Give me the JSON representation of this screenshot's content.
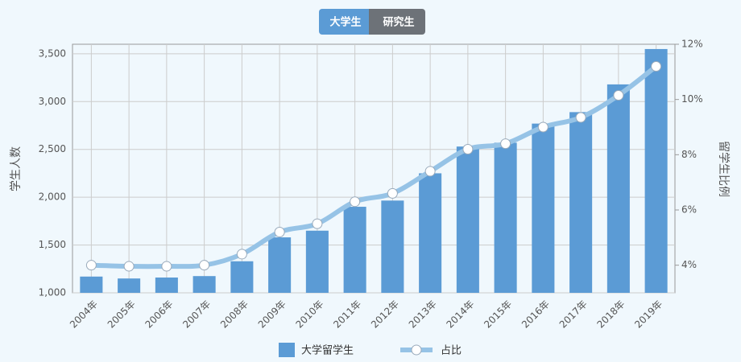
{
  "tabs": [
    "大学生",
    "研究生"
  ],
  "chart_data": {
    "type": "bar",
    "ylabel": "学生人数",
    "y2label": "留学生比例",
    "categories": [
      "2004年",
      "2005年",
      "2006年",
      "2007年",
      "2008年",
      "2009年",
      "2010年",
      "2011年",
      "2012年",
      "2013年",
      "2014年",
      "2015年",
      "2016年",
      "2017年",
      "2018年",
      "2019年"
    ],
    "series": [
      {
        "name": "大学留学生",
        "type": "bar",
        "color": "#5b9bd5",
        "values": [
          1170,
          1150,
          1160,
          1175,
          1330,
          1580,
          1650,
          1900,
          1965,
          2250,
          2530,
          2570,
          2770,
          2890,
          3180,
          3550
        ]
      },
      {
        "name": "占比",
        "type": "line",
        "axis": "y2",
        "color": "#96c3e6",
        "values": [
          4.0,
          3.96,
          3.96,
          4.0,
          4.4,
          5.2,
          5.5,
          6.3,
          6.6,
          7.4,
          8.2,
          8.4,
          9.0,
          9.35,
          10.15,
          11.2
        ]
      }
    ],
    "ylim": [
      1000,
      3600
    ],
    "yticks": [
      {
        "value": 1000,
        "label": "1,000"
      },
      {
        "value": 1500,
        "label": "1,500"
      },
      {
        "value": 2000,
        "label": "2,000"
      },
      {
        "value": 2500,
        "label": "2,500"
      },
      {
        "value": 3000,
        "label": "3,000"
      },
      {
        "value": 3500,
        "label": "3,500"
      }
    ],
    "y2lim": [
      3,
      12
    ],
    "y2ticks": [
      {
        "value": 4,
        "label": "4%"
      },
      {
        "value": 6,
        "label": "6%"
      },
      {
        "value": 8,
        "label": "8%"
      },
      {
        "value": 10,
        "label": "10%"
      },
      {
        "value": 12,
        "label": "12%"
      }
    ],
    "grid": true
  }
}
